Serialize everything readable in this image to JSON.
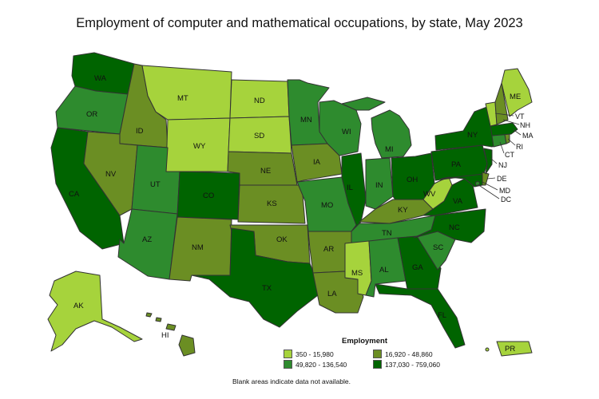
{
  "title": "Employment of computer and mathematical occupations, by state, May 2023",
  "legend": {
    "title": "Employment",
    "bins": [
      {
        "label": "350 - 15,980",
        "color": "#a6d33c"
      },
      {
        "label": "16,920 - 48,860",
        "color": "#6b8e23"
      },
      {
        "label": "49,820 - 136,540",
        "color": "#2e8b2e"
      },
      {
        "label": "137,030 - 759,060",
        "color": "#006400"
      }
    ]
  },
  "note": "Blank areas indicate data not available.",
  "states": {
    "WA": {
      "label": "WA",
      "bin": 3
    },
    "OR": {
      "label": "OR",
      "bin": 2
    },
    "CA": {
      "label": "CA",
      "bin": 3
    },
    "ID": {
      "label": "ID",
      "bin": 1
    },
    "NV": {
      "label": "NV",
      "bin": 1
    },
    "MT": {
      "label": "MT",
      "bin": 0
    },
    "WY": {
      "label": "WY",
      "bin": 0
    },
    "UT": {
      "label": "UT",
      "bin": 2
    },
    "AZ": {
      "label": "AZ",
      "bin": 2
    },
    "CO": {
      "label": "CO",
      "bin": 3
    },
    "NM": {
      "label": "NM",
      "bin": 1
    },
    "ND": {
      "label": "ND",
      "bin": 0
    },
    "SD": {
      "label": "SD",
      "bin": 0
    },
    "NE": {
      "label": "NE",
      "bin": 1
    },
    "KS": {
      "label": "KS",
      "bin": 1
    },
    "OK": {
      "label": "OK",
      "bin": 1
    },
    "TX": {
      "label": "TX",
      "bin": 3
    },
    "MN": {
      "label": "MN",
      "bin": 2
    },
    "IA": {
      "label": "IA",
      "bin": 1
    },
    "MO": {
      "label": "MO",
      "bin": 2
    },
    "AR": {
      "label": "AR",
      "bin": 1
    },
    "LA": {
      "label": "LA",
      "bin": 1
    },
    "WI": {
      "label": "WI",
      "bin": 2
    },
    "IL": {
      "label": "IL",
      "bin": 3
    },
    "MI": {
      "label": "MI",
      "bin": 2
    },
    "IN": {
      "label": "IN",
      "bin": 2
    },
    "OH": {
      "label": "OH",
      "bin": 3
    },
    "KY": {
      "label": "KY",
      "bin": 1
    },
    "TN": {
      "label": "TN",
      "bin": 2
    },
    "MS": {
      "label": "MS",
      "bin": 0
    },
    "AL": {
      "label": "AL",
      "bin": 2
    },
    "GA": {
      "label": "GA",
      "bin": 3
    },
    "FL": {
      "label": "FL",
      "bin": 3
    },
    "SC": {
      "label": "SC",
      "bin": 2
    },
    "NC": {
      "label": "NC",
      "bin": 3
    },
    "VA": {
      "label": "VA",
      "bin": 3
    },
    "WV": {
      "label": "WV",
      "bin": 0
    },
    "PA": {
      "label": "PA",
      "bin": 3
    },
    "NY": {
      "label": "NY",
      "bin": 3
    },
    "NJ": {
      "label": "NJ",
      "bin": 3
    },
    "DE": {
      "label": "DE",
      "bin": 1
    },
    "MD": {
      "label": "MD",
      "bin": 3
    },
    "DC": {
      "label": "DC",
      "bin": 2
    },
    "CT": {
      "label": "CT",
      "bin": 2
    },
    "RI": {
      "label": "RI",
      "bin": 1
    },
    "MA": {
      "label": "MA",
      "bin": 3
    },
    "VT": {
      "label": "VT",
      "bin": 0
    },
    "NH": {
      "label": "NH",
      "bin": 1
    },
    "ME": {
      "label": "ME",
      "bin": 0
    },
    "AK": {
      "label": "AK",
      "bin": 0
    },
    "HI": {
      "label": "HI",
      "bin": 1
    },
    "PR": {
      "label": "PR",
      "bin": 0
    }
  }
}
